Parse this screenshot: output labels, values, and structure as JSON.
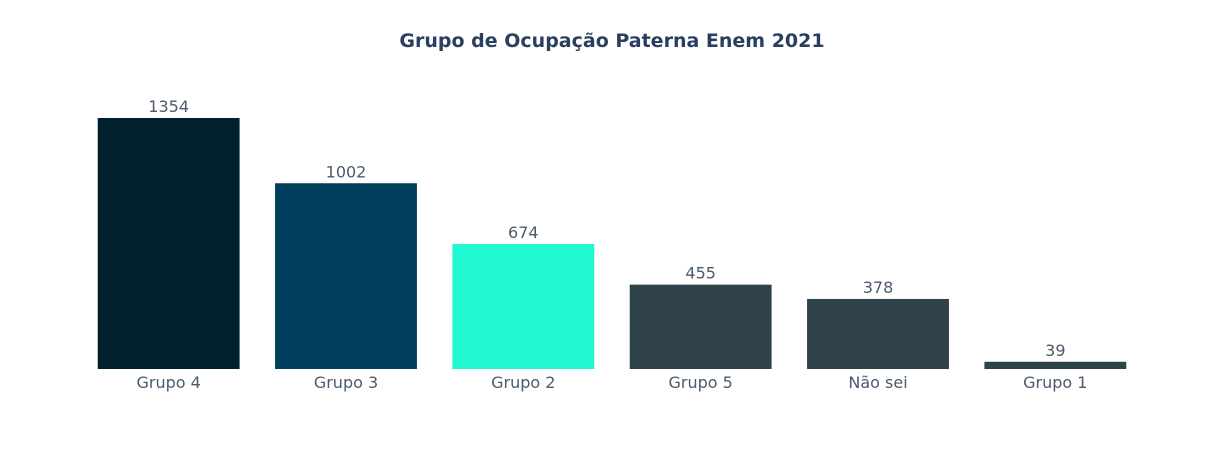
{
  "chart_data": {
    "type": "bar",
    "title": "Grupo de Ocupação Paterna Enem 2021",
    "xlabel": "",
    "ylabel": "",
    "categories": [
      "Grupo 4",
      "Grupo 3",
      "Grupo 2",
      "Grupo 5",
      "Não sei",
      "Grupo 1"
    ],
    "values": [
      1354,
      1002,
      674,
      455,
      378,
      39
    ],
    "colors": [
      "#00202e",
      "#003f5c",
      "#1ff8d0",
      "#2f4249",
      "#2f4249",
      "#2f4249"
    ],
    "ylim": [
      0,
      1354
    ],
    "grid": false,
    "legend": "none"
  }
}
